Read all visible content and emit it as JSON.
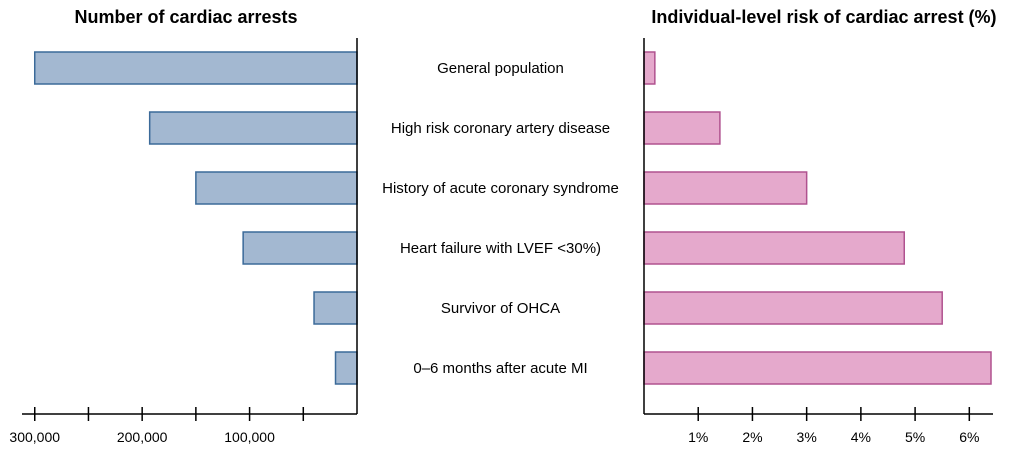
{
  "chart_data": [
    {
      "type": "bar",
      "orientation": "horizontal",
      "direction": "right-to-left",
      "title": "Number of cardiac arrests",
      "xlabel": "",
      "ylabel": "",
      "categories": [
        "General population",
        "High risk coronary artery disease",
        "History of acute coronary syndrome",
        "Heart failure with LVEF <30%)",
        "Survivor of OHCA",
        "0–6 months after acute MI"
      ],
      "values": [
        300000,
        193000,
        150000,
        106000,
        40000,
        20000
      ],
      "xlim": [
        0,
        310000
      ],
      "xticks": [
        300000,
        250000,
        200000,
        150000,
        100000,
        50000
      ],
      "xtick_labels": [
        {
          "value": 300000,
          "label": "300,000"
        },
        {
          "value": 200000,
          "label": "200,000"
        },
        {
          "value": 100000,
          "label": "100,000"
        }
      ],
      "color": "#a3b8d1",
      "edge_color": "#3b6a99",
      "grid": false
    },
    {
      "type": "bar",
      "orientation": "horizontal",
      "title": "Individual-level risk of cardiac arrest (%)",
      "xlabel": "",
      "ylabel": "",
      "categories": [
        "General population",
        "High risk coronary artery disease",
        "History of acute coronary syndrome",
        "Heart failure with LVEF <30%)",
        "Survivor of OHCA",
        "0–6 months after acute MI"
      ],
      "values": [
        0.2,
        1.4,
        3.0,
        4.8,
        5.5,
        6.4
      ],
      "xlim": [
        0,
        6.4
      ],
      "xticks": [
        1,
        2,
        3,
        4,
        5,
        6
      ],
      "xtick_labels": [
        {
          "value": 1,
          "label": "1%"
        },
        {
          "value": 2,
          "label": "2%"
        },
        {
          "value": 3,
          "label": "3%"
        },
        {
          "value": 4,
          "label": "4%"
        },
        {
          "value": 5,
          "label": "5%"
        },
        {
          "value": 6,
          "label": "6%"
        }
      ],
      "color": "#e5a9cc",
      "edge_color": "#b0528f",
      "grid": false
    }
  ]
}
